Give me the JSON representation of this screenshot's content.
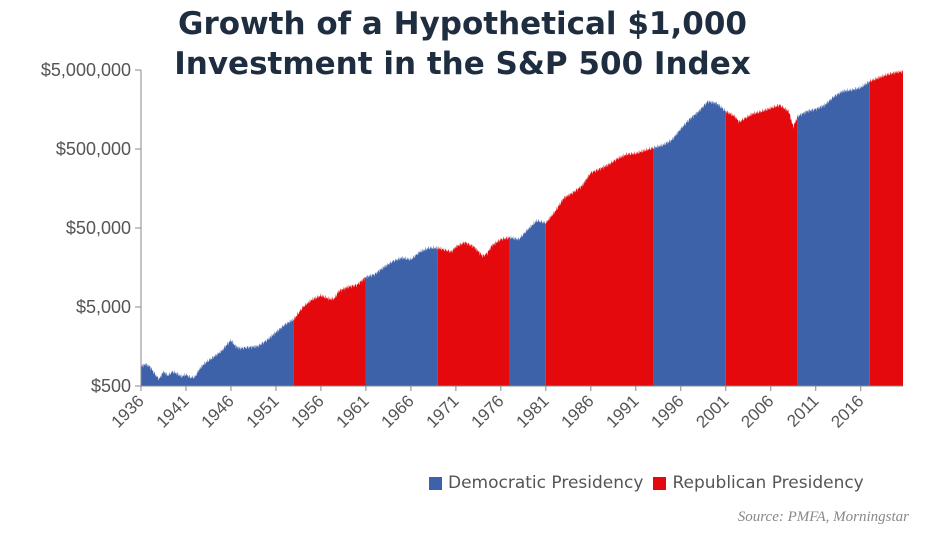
{
  "title_line1": "Growth of a Hypothetical $1,000",
  "title_line2": "Investment in the S&P 500 Index",
  "source": "Source: PMFA, Morningstar",
  "colors": {
    "democratic": "#3e62aa",
    "republican": "#e3090d",
    "axis": "#888888",
    "text": "#555555"
  },
  "chart_data": {
    "type": "area",
    "title": "Growth of a Hypothetical $1,000 Investment in the S&P 500 Index",
    "xlabel": "",
    "ylabel": "",
    "y_scale": "log",
    "ylim": [
      500,
      5000000
    ],
    "xlim": [
      1936,
      2020.7
    ],
    "y_ticks": [
      500,
      5000,
      50000,
      500000,
      5000000
    ],
    "y_tick_labels": [
      "$500",
      "$5,000",
      "$50,000",
      "$500,000",
      "$5,000,000"
    ],
    "x_ticks": [
      1936,
      1941,
      1946,
      1951,
      1956,
      1961,
      1966,
      1971,
      1976,
      1981,
      1986,
      1991,
      1996,
      2001,
      2006,
      2011,
      2016
    ],
    "x_tick_labels": [
      "1936",
      "1941",
      "1946",
      "1951",
      "1956",
      "1961",
      "1966",
      "1971",
      "1976",
      "1981",
      "1986",
      "1991",
      "1996",
      "2001",
      "2006",
      "2011",
      "2016"
    ],
    "grid": false,
    "legend": {
      "placement": "bottom-right",
      "entries": [
        {
          "name": "Democratic Presidency",
          "party": "democratic"
        },
        {
          "name": "Republican Presidency",
          "party": "republican"
        }
      ]
    },
    "periods": [
      {
        "start": 1936.0,
        "end": 1953.0,
        "party": "democratic"
      },
      {
        "start": 1953.0,
        "end": 1961.0,
        "party": "republican"
      },
      {
        "start": 1961.0,
        "end": 1969.0,
        "party": "democratic"
      },
      {
        "start": 1969.0,
        "end": 1977.0,
        "party": "republican"
      },
      {
        "start": 1977.0,
        "end": 1981.0,
        "party": "democratic"
      },
      {
        "start": 1981.0,
        "end": 1993.0,
        "party": "republican"
      },
      {
        "start": 1993.0,
        "end": 2001.0,
        "party": "democratic"
      },
      {
        "start": 2001.0,
        "end": 2009.0,
        "party": "republican"
      },
      {
        "start": 2009.0,
        "end": 2017.0,
        "party": "democratic"
      },
      {
        "start": 2017.0,
        "end": 2020.7,
        "party": "republican"
      }
    ],
    "x": [
      1936.0,
      1936.5,
      1937.0,
      1937.5,
      1938.0,
      1938.5,
      1939.0,
      1939.5,
      1940.0,
      1940.5,
      1941.0,
      1941.5,
      1942.0,
      1942.5,
      1943.0,
      1943.5,
      1944.0,
      1945.0,
      1945.5,
      1946.0,
      1946.5,
      1947.0,
      1948.0,
      1949.0,
      1950.0,
      1951.0,
      1952.0,
      1953.0,
      1954.0,
      1955.0,
      1956.0,
      1957.0,
      1957.5,
      1958.0,
      1959.0,
      1960.0,
      1961.0,
      1962.0,
      1962.5,
      1963.0,
      1964.0,
      1965.0,
      1966.0,
      1967.0,
      1968.0,
      1969.0,
      1970.0,
      1970.5,
      1971.0,
      1972.0,
      1973.0,
      1974.0,
      1974.5,
      1975.0,
      1976.0,
      1977.0,
      1978.0,
      1979.0,
      1980.0,
      1981.0,
      1982.0,
      1983.0,
      1984.0,
      1985.0,
      1986.0,
      1987.0,
      1988.0,
      1989.0,
      1990.0,
      1991.0,
      1992.0,
      1993.0,
      1994.0,
      1995.0,
      1996.0,
      1997.0,
      1998.0,
      1999.0,
      2000.0,
      2001.0,
      2002.0,
      2002.5,
      2003.0,
      2004.0,
      2005.0,
      2006.0,
      2007.0,
      2008.0,
      2008.5,
      2009.0,
      2010.0,
      2011.0,
      2012.0,
      2013.0,
      2014.0,
      2015.0,
      2016.0,
      2017.0,
      2018.0,
      2019.0,
      2020.0,
      2020.7
    ],
    "values": [
      880,
      950,
      880,
      720,
      610,
      760,
      680,
      760,
      720,
      660,
      700,
      640,
      650,
      820,
      950,
      1050,
      1150,
      1400,
      1650,
      1900,
      1600,
      1500,
      1550,
      1600,
      1900,
      2400,
      3000,
      3500,
      5000,
      6200,
      7000,
      6300,
      6400,
      8000,
      9000,
      9500,
      12000,
      13000,
      14500,
      16000,
      19000,
      21000,
      20000,
      25000,
      28000,
      28000,
      26000,
      25000,
      29000,
      33000,
      29000,
      22000,
      24000,
      30000,
      36000,
      38000,
      36000,
      48000,
      62000,
      58000,
      80000,
      120000,
      140000,
      170000,
      250000,
      280000,
      320000,
      380000,
      430000,
      440000,
      480000,
      520000,
      560000,
      650000,
      900000,
      1200000,
      1500000,
      2000000,
      1900000,
      1500000,
      1300000,
      1100000,
      1200000,
      1400000,
      1500000,
      1650000,
      1800000,
      1500000,
      950000,
      1300000,
      1500000,
      1600000,
      1800000,
      2300000,
      2700000,
      2800000,
      3000000,
      3600000,
      4000000,
      4400000,
      4700000,
      4800000
    ]
  }
}
